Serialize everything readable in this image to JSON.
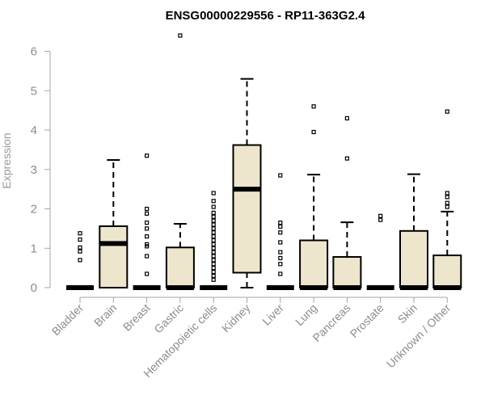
{
  "chart_data": {
    "type": "box",
    "title": "ENSG00000229556 - RP11-363G2.4",
    "xlabel": "",
    "ylabel": "Expression",
    "ylim": [
      0,
      6.6
    ],
    "yticks": [
      0,
      1,
      2,
      3,
      4,
      5,
      6
    ],
    "grid": false,
    "box_fill": "#ede6cc",
    "categories": [
      "Bladder",
      "Brain",
      "Breast",
      "Gastric",
      "Hematopoietic cells",
      "Kidney",
      "Liver",
      "Lung",
      "Pancreas",
      "Prostate",
      "Skin",
      "Unknown / Other"
    ],
    "boxes": [
      {
        "name": "Bladder",
        "min": 0,
        "q1": 0,
        "median": 0,
        "q3": 0,
        "max": 0,
        "outliers": [
          0.7,
          0.92,
          1.02,
          1.22,
          1.38
        ]
      },
      {
        "name": "Brain",
        "min": 0,
        "q1": 0,
        "median": 1.12,
        "q3": 1.56,
        "max": 3.24,
        "outliers": []
      },
      {
        "name": "Breast",
        "min": 0,
        "q1": 0,
        "median": 0,
        "q3": 0,
        "max": 0,
        "outliers": [
          0.35,
          0.8,
          1.05,
          1.1,
          1.3,
          1.5,
          1.65,
          1.88,
          2.0,
          3.35
        ]
      },
      {
        "name": "Gastric",
        "min": 0,
        "q1": 0,
        "median": 0,
        "q3": 1.02,
        "max": 1.62,
        "outliers": [
          6.4
        ]
      },
      {
        "name": "Hematopoietic cells",
        "min": 0,
        "q1": 0,
        "median": 0,
        "q3": 0,
        "max": 0,
        "outliers": [
          0.2,
          0.3,
          0.4,
          0.5,
          0.6,
          0.7,
          0.8,
          0.9,
          1.0,
          1.1,
          1.2,
          1.3,
          1.4,
          1.5,
          1.6,
          1.7,
          1.8,
          1.9,
          2.05,
          2.2,
          2.4
        ]
      },
      {
        "name": "Kidney",
        "min": 0,
        "q1": 0.38,
        "median": 2.5,
        "q3": 3.62,
        "max": 5.3,
        "outliers": []
      },
      {
        "name": "Liver",
        "min": 0,
        "q1": 0,
        "median": 0,
        "q3": 0,
        "max": 0,
        "outliers": [
          0.35,
          0.6,
          0.75,
          0.9,
          1.15,
          1.4,
          1.55,
          1.65,
          2.85
        ]
      },
      {
        "name": "Lung",
        "min": 0,
        "q1": 0,
        "median": 0,
        "q3": 1.2,
        "max": 2.87,
        "outliers": [
          3.95,
          4.6
        ]
      },
      {
        "name": "Pancreas",
        "min": 0,
        "q1": 0,
        "median": 0,
        "q3": 0.78,
        "max": 1.66,
        "outliers": [
          3.28,
          4.3
        ]
      },
      {
        "name": "Prostate",
        "min": 0,
        "q1": 0,
        "median": 0,
        "q3": 0,
        "max": 0,
        "outliers": [
          1.72,
          1.82
        ]
      },
      {
        "name": "Skin",
        "min": 0,
        "q1": 0,
        "median": 0,
        "q3": 1.44,
        "max": 2.88,
        "outliers": []
      },
      {
        "name": "Unknown / Other",
        "min": 0,
        "q1": 0,
        "median": 0,
        "q3": 0.82,
        "max": 1.93,
        "outliers": [
          2.05,
          2.15,
          2.3,
          2.4,
          4.47
        ]
      }
    ]
  }
}
